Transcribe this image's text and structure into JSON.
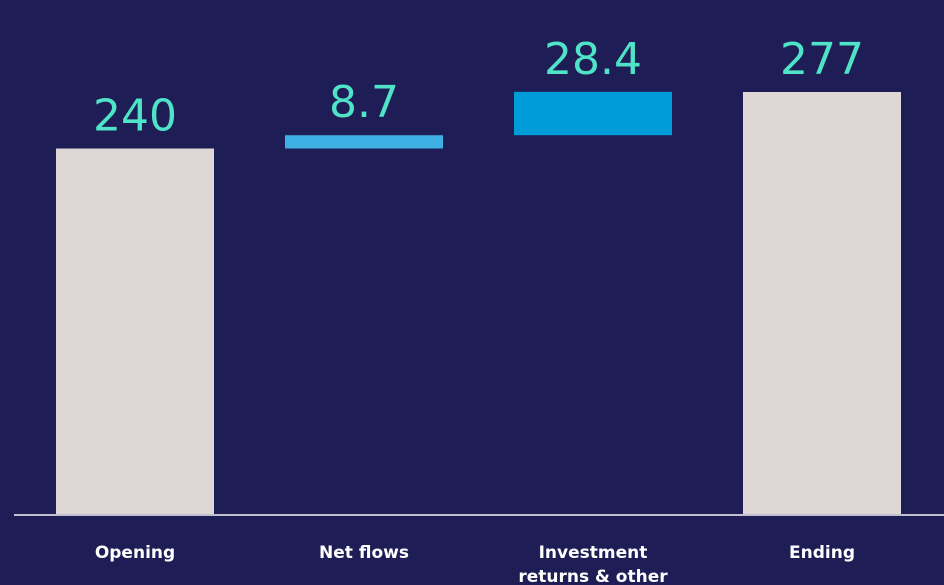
{
  "chart_data": {
    "type": "bar",
    "subtype": "waterfall",
    "categories": [
      "Opening",
      "Net flows",
      "Investment returns & other",
      "Ending"
    ],
    "category_lines": [
      [
        "Opening"
      ],
      [
        "Net flows"
      ],
      [
        "Investment",
        "returns & other"
      ],
      [
        "Ending"
      ]
    ],
    "value_labels": [
      "240",
      "8.7",
      "28.4",
      "277"
    ],
    "bars": [
      {
        "kind": "total",
        "start": 0,
        "end": 240,
        "color": "#ddd8d5"
      },
      {
        "kind": "delta",
        "start": 240,
        "end": 248.7,
        "color": "#3fb0e3"
      },
      {
        "kind": "delta",
        "start": 248.7,
        "end": 277.1,
        "color": "#009cd9"
      },
      {
        "kind": "total",
        "start": 0,
        "end": 277,
        "color": "#ddd8d5"
      }
    ],
    "ylim": [
      0,
      277
    ],
    "grid": false,
    "legend": "none",
    "title": "",
    "xlabel": "",
    "ylabel": ""
  },
  "colors": {
    "background": "#1e1d56",
    "value_label": "#4fe3c8",
    "axis": "#bfbfcf",
    "category_label": "#ffffff"
  }
}
